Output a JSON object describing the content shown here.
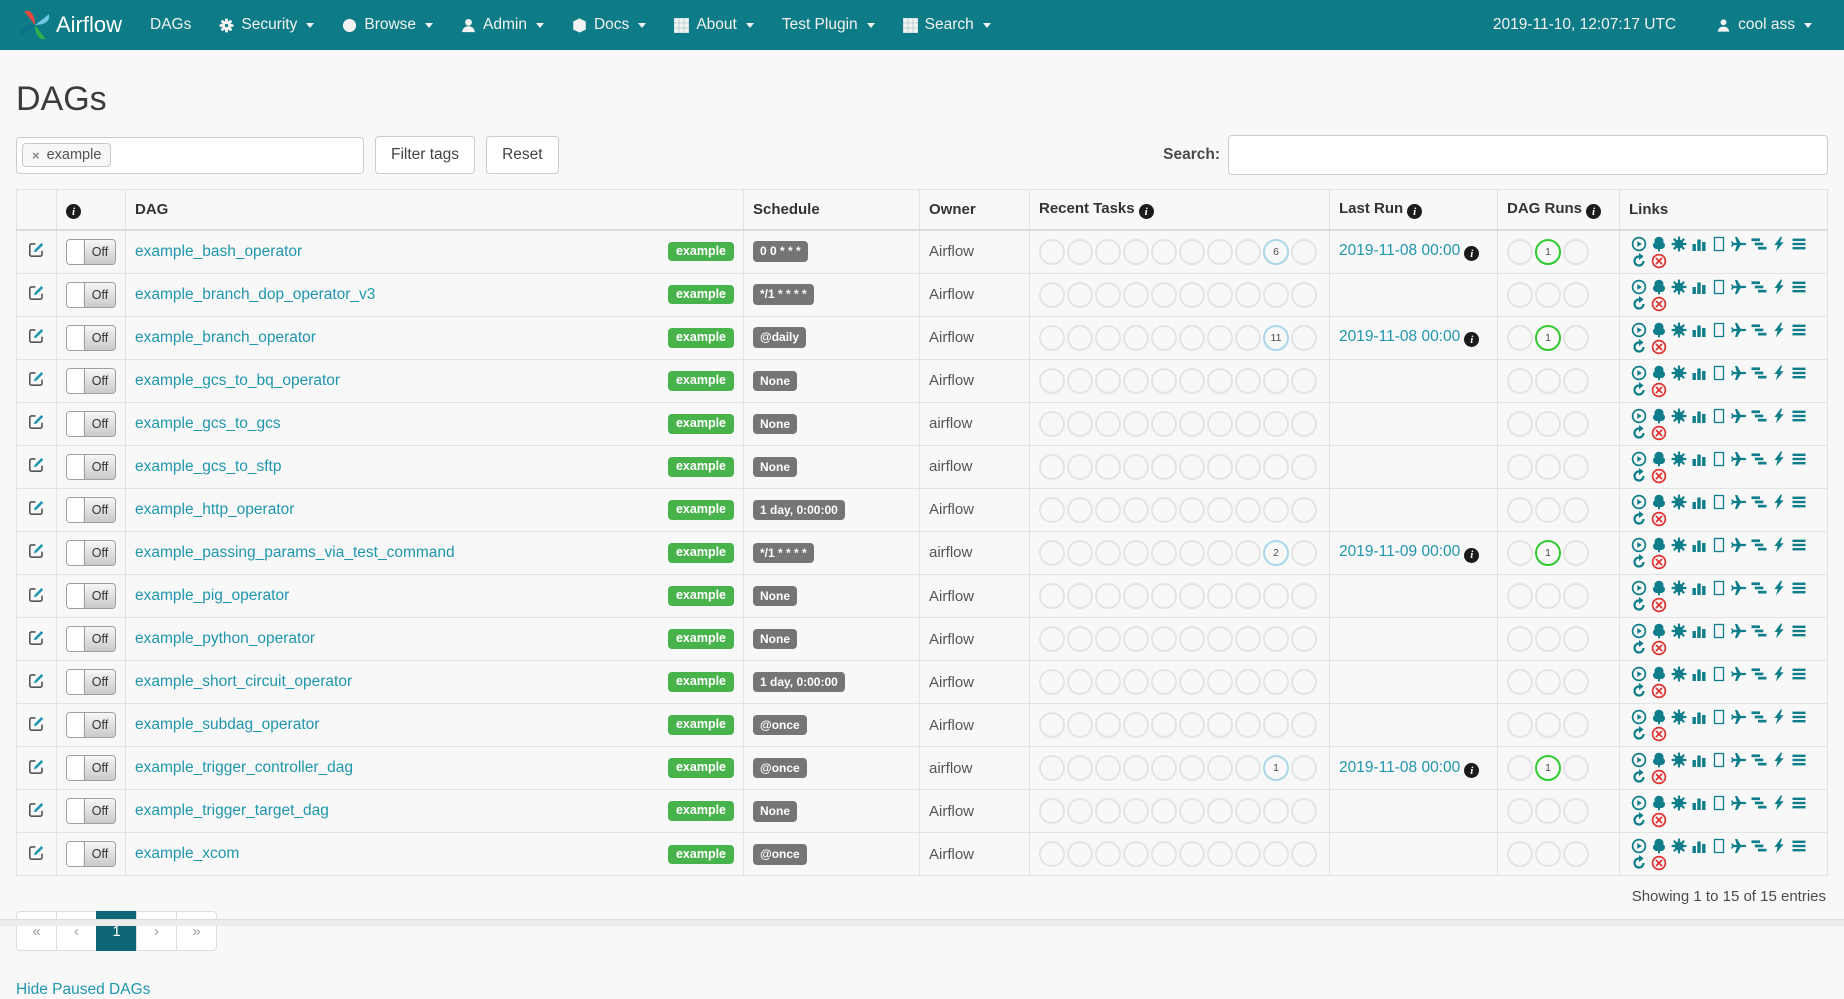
{
  "navbar": {
    "brand": "Airflow",
    "items": [
      {
        "label": "DAGs",
        "icon": null,
        "caret": false
      },
      {
        "label": "Security",
        "icon": "gear-icon",
        "caret": true
      },
      {
        "label": "Browse",
        "icon": "globe-icon",
        "caret": true
      },
      {
        "label": "Admin",
        "icon": "user-icon",
        "caret": true
      },
      {
        "label": "Docs",
        "icon": "cube-icon",
        "caret": true
      },
      {
        "label": "About",
        "icon": "grid-icon",
        "caret": true
      },
      {
        "label": "Test Plugin",
        "icon": null,
        "caret": true
      },
      {
        "label": "Search",
        "icon": "grid-icon",
        "caret": true
      }
    ],
    "clock": "2019-11-10, 12:07:17 UTC",
    "user": {
      "label": "cool ass",
      "icon": "user-icon",
      "caret": true
    }
  },
  "page": {
    "title": "DAGs",
    "filter": {
      "tag": "example",
      "remove_tag_symbol": "×",
      "filter_button": "Filter tags",
      "reset_button": "Reset"
    },
    "search_label": "Search:"
  },
  "table": {
    "headers": {
      "edit": "",
      "pause": "",
      "dag": "DAG",
      "schedule": "Schedule",
      "owner": "Owner",
      "recent_tasks": "Recent Tasks",
      "last_run": "Last Run",
      "dag_runs": "DAG Runs",
      "links": "Links"
    },
    "pause_label": "Off",
    "recent_task_circle_count": 10,
    "dag_run_circle_count": 3,
    "link_actions": [
      {
        "icon": "trigger-dag-icon",
        "label": "Trigger Dag",
        "key": "trigger"
      },
      {
        "icon": "tree-view-icon",
        "label": "Tree View",
        "key": "tree"
      },
      {
        "icon": "graph-view-icon",
        "label": "Graph View",
        "key": "graph"
      },
      {
        "icon": "task-duration-icon",
        "label": "Tasks Duration",
        "key": "duration"
      },
      {
        "icon": "task-tries-icon",
        "label": "Task Tries",
        "key": "tries"
      },
      {
        "icon": "landing-times-icon",
        "label": "Landing Times",
        "key": "landing"
      },
      {
        "icon": "gantt-icon",
        "label": "Gantt View",
        "key": "gantt"
      },
      {
        "icon": "code-view-icon",
        "label": "Code View",
        "key": "code"
      },
      {
        "icon": "dag-details-icon",
        "label": "DAG Details",
        "key": "details"
      },
      {
        "icon": "refresh-icon",
        "label": "Refresh",
        "key": "refresh"
      },
      {
        "icon": "delete-dag-icon",
        "label": "Delete Dag",
        "key": "delete"
      }
    ],
    "rows": [
      {
        "name": "example_bash_operator",
        "tag": "example",
        "schedule": "0 0 * * *",
        "owner": "Airflow",
        "recent_none_count": 6,
        "last_run": "2019-11-08 00:00",
        "runs_success_count": 1
      },
      {
        "name": "example_branch_dop_operator_v3",
        "tag": "example",
        "schedule": "*/1 * * * *",
        "owner": "Airflow",
        "recent_none_count": null,
        "last_run": null,
        "runs_success_count": null
      },
      {
        "name": "example_branch_operator",
        "tag": "example",
        "schedule": "@daily",
        "owner": "Airflow",
        "recent_none_count": 11,
        "last_run": "2019-11-08 00:00",
        "runs_success_count": 1
      },
      {
        "name": "example_gcs_to_bq_operator",
        "tag": "example",
        "schedule": "None",
        "owner": "Airflow",
        "recent_none_count": null,
        "last_run": null,
        "runs_success_count": null
      },
      {
        "name": "example_gcs_to_gcs",
        "tag": "example",
        "schedule": "None",
        "owner": "airflow",
        "recent_none_count": null,
        "last_run": null,
        "runs_success_count": null
      },
      {
        "name": "example_gcs_to_sftp",
        "tag": "example",
        "schedule": "None",
        "owner": "airflow",
        "recent_none_count": null,
        "last_run": null,
        "runs_success_count": null
      },
      {
        "name": "example_http_operator",
        "tag": "example",
        "schedule": "1 day, 0:00:00",
        "owner": "Airflow",
        "recent_none_count": null,
        "last_run": null,
        "runs_success_count": null
      },
      {
        "name": "example_passing_params_via_test_command",
        "tag": "example",
        "schedule": "*/1 * * * *",
        "owner": "airflow",
        "recent_none_count": 2,
        "last_run": "2019-11-09 00:00",
        "runs_success_count": 1
      },
      {
        "name": "example_pig_operator",
        "tag": "example",
        "schedule": "None",
        "owner": "Airflow",
        "recent_none_count": null,
        "last_run": null,
        "runs_success_count": null
      },
      {
        "name": "example_python_operator",
        "tag": "example",
        "schedule": "None",
        "owner": "Airflow",
        "recent_none_count": null,
        "last_run": null,
        "runs_success_count": null
      },
      {
        "name": "example_short_circuit_operator",
        "tag": "example",
        "schedule": "1 day, 0:00:00",
        "owner": "Airflow",
        "recent_none_count": null,
        "last_run": null,
        "runs_success_count": null
      },
      {
        "name": "example_subdag_operator",
        "tag": "example",
        "schedule": "@once",
        "owner": "Airflow",
        "recent_none_count": null,
        "last_run": null,
        "runs_success_count": null
      },
      {
        "name": "example_trigger_controller_dag",
        "tag": "example",
        "schedule": "@once",
        "owner": "airflow",
        "recent_none_count": 1,
        "last_run": "2019-11-08 00:00",
        "runs_success_count": 1
      },
      {
        "name": "example_trigger_target_dag",
        "tag": "example",
        "schedule": "None",
        "owner": "Airflow",
        "recent_none_count": null,
        "last_run": null,
        "runs_success_count": null
      },
      {
        "name": "example_xcom",
        "tag": "example",
        "schedule": "@once",
        "owner": "Airflow",
        "recent_none_count": null,
        "last_run": null,
        "runs_success_count": null
      }
    ]
  },
  "footer": {
    "showing": "Showing 1 to 15 of 15 entries",
    "pagination": [
      "«",
      "‹",
      "1",
      "›",
      "»"
    ],
    "active_page_index": 2,
    "hide_paused": "Hide Paused DAGs"
  },
  "colors": {
    "navbar_bg": "#0e7c86",
    "link_teal": "#1f96ad",
    "tag_green": "#49b34b",
    "schedule_badge_gray": "#757575",
    "dag_run_success": "#2fcb2f",
    "task_state_none": "#a9d7e8",
    "delete_red": "#e03131",
    "active_page_bg": "#0f6674"
  }
}
